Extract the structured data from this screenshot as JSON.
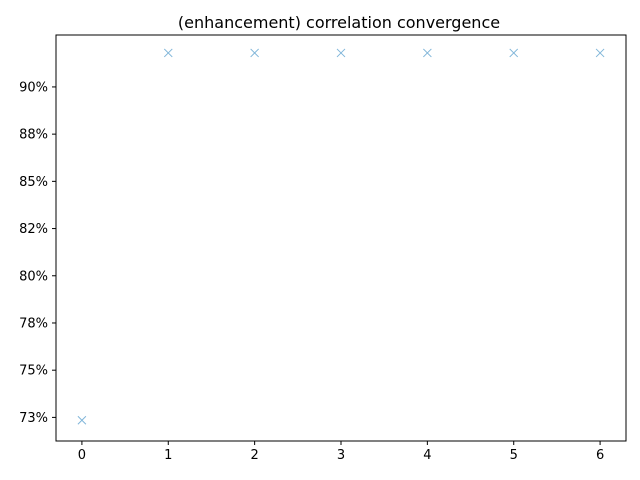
{
  "chart_data": {
    "type": "scatter",
    "title": "(enhancement) correlation convergence",
    "xlabel": "",
    "ylabel": "",
    "marker": "x",
    "marker_color": "#7fb5d9",
    "grid": false,
    "xlim": [
      -0.3,
      6.3
    ],
    "ylim": [
      0.7125,
      0.9275
    ],
    "x_ticks": [
      0,
      1,
      2,
      3,
      4,
      5,
      6
    ],
    "x_tick_labels": [
      "0",
      "1",
      "2",
      "3",
      "4",
      "5",
      "6"
    ],
    "y_ticks": [
      0.725,
      0.75,
      0.775,
      0.8,
      0.825,
      0.85,
      0.875,
      0.9
    ],
    "y_tick_labels": [
      "73%",
      "75%",
      "78%",
      "80%",
      "82%",
      "85%",
      "88%",
      "90%"
    ],
    "series": [
      {
        "x": [
          0,
          1,
          2,
          3,
          4,
          5,
          6
        ],
        "y": [
          0.7235,
          0.918,
          0.918,
          0.918,
          0.918,
          0.918,
          0.918
        ]
      }
    ]
  }
}
